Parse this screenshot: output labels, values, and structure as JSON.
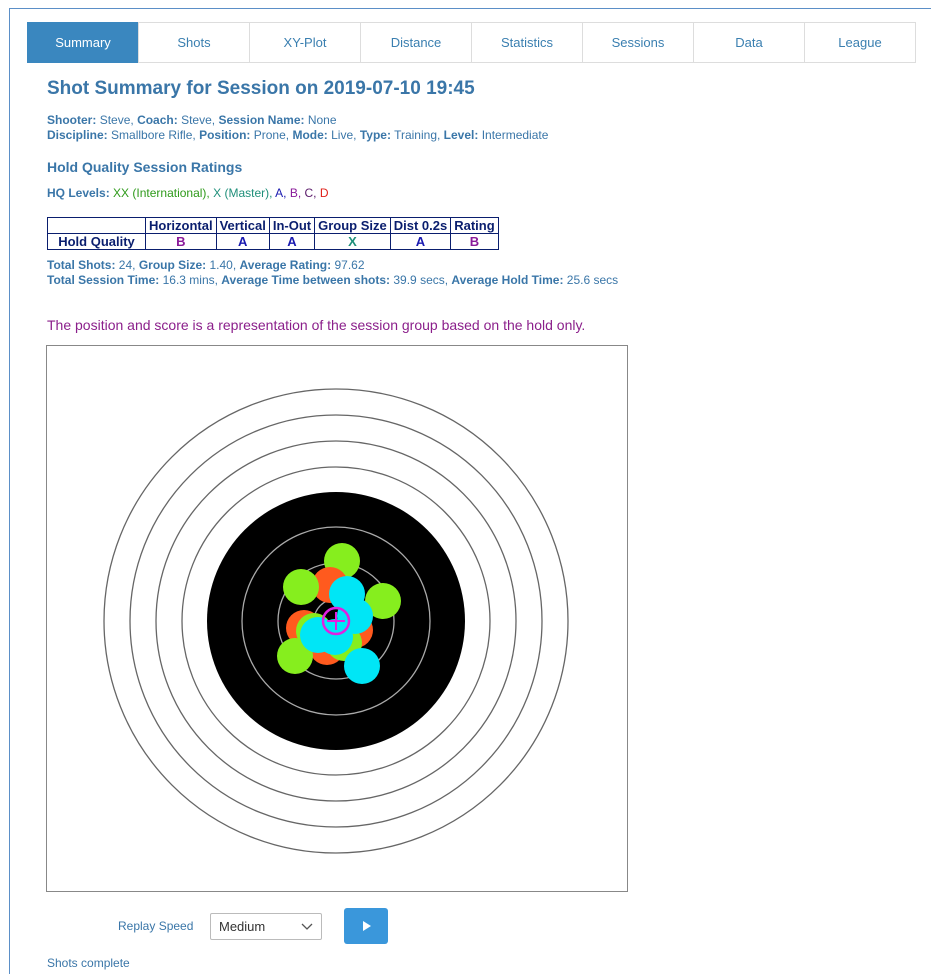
{
  "tabs": [
    "Summary",
    "Shots",
    "XY-Plot",
    "Distance",
    "Statistics",
    "Sessions",
    "Data",
    "League"
  ],
  "active_tab": 0,
  "title": "Shot Summary for Session on 2019-07-10 19:45",
  "info_lines": [
    [
      {
        "label": "Shooter:",
        "value": "Steve,"
      },
      {
        "label": "Coach:",
        "value": "Steve,"
      },
      {
        "label": "Session Name:",
        "value": "None"
      }
    ],
    [
      {
        "label": "Discipline:",
        "value": "Smallbore Rifle,"
      },
      {
        "label": "Position:",
        "value": "Prone,"
      },
      {
        "label": "Mode:",
        "value": "Live,"
      },
      {
        "label": "Type:",
        "value": "Training,"
      },
      {
        "label": "Level:",
        "value": "Intermediate"
      }
    ]
  ],
  "hq_heading": "Hold Quality Session Ratings",
  "hq_levels": {
    "label": "HQ Levels:",
    "items": [
      {
        "text": "XX (International),",
        "color": "#2e9a1a"
      },
      {
        "text": "X (Master),",
        "color": "#1f8f7a"
      },
      {
        "text": "A,",
        "color": "#1a1ab0"
      },
      {
        "text": "B,",
        "color": "#8a1a9a"
      },
      {
        "text": "C,",
        "color": "#5a1a6a"
      },
      {
        "text": "D",
        "color": "#e0201a"
      }
    ]
  },
  "table": {
    "header": [
      "Horizontal",
      "Vertical",
      "In-Out",
      "Group Size",
      "Dist 0.2s",
      "Rating"
    ],
    "rows": [
      {
        "label": "Hold Quality",
        "cells": [
          {
            "text": "B",
            "color": "#8a1a9a"
          },
          {
            "text": "A",
            "color": "#1a1ab0"
          },
          {
            "text": "A",
            "color": "#1a1ab0"
          },
          {
            "text": "X",
            "color": "#1f8f7a"
          },
          {
            "text": "A",
            "color": "#1a1ab0"
          },
          {
            "text": "B",
            "color": "#8a1a9a"
          }
        ]
      }
    ]
  },
  "stats_lines": [
    [
      {
        "label": "Total Shots:",
        "value": "24,"
      },
      {
        "label": "Group Size:",
        "value": "1.40,"
      },
      {
        "label": "Average Rating:",
        "value": "97.62"
      }
    ],
    [
      {
        "label": "Total Session Time:",
        "value": "16.3 mins,"
      },
      {
        "label": "Average Time between shots:",
        "value": "39.9 secs,"
      },
      {
        "label": "Average Hold Time:",
        "value": "25.6 secs"
      }
    ]
  ],
  "note": "The position and score is a representation of the session group based on the hold only.",
  "replay": {
    "label": "Replay Speed",
    "speed": "Medium"
  },
  "status": "Shots complete"
}
